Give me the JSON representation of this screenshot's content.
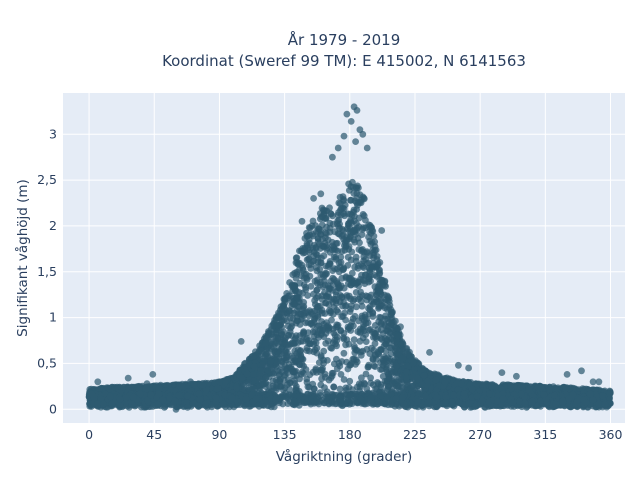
{
  "chart_data": {
    "type": "scatter",
    "title_line1": "År 1979 - 2019",
    "title_line2": "Koordinat (Sweref 99 TM): E 415002, N 6141563",
    "xlabel": "Vågriktning (grader)",
    "ylabel": "Signifikant våghöjd (m)",
    "xlim": [
      -18,
      370
    ],
    "ylim": [
      -0.15,
      3.45
    ],
    "x_ticks": [
      0,
      45,
      90,
      135,
      180,
      225,
      270,
      315,
      360
    ],
    "x_tick_labels": [
      "0",
      "45",
      "90",
      "135",
      "180",
      "225",
      "270",
      "315",
      "360"
    ],
    "y_ticks": [
      0,
      0.5,
      1,
      1.5,
      2,
      2.5,
      3
    ],
    "y_tick_labels": [
      "0",
      "0,5",
      "1",
      "1,5",
      "2",
      "2,5",
      "3"
    ],
    "grid": true,
    "marker_color": "#2e5a70",
    "marker_opacity": 0.72,
    "background_color": "#e5ecf6",
    "envelope": {
      "x": [
        0,
        15,
        30,
        45,
        60,
        75,
        90,
        100,
        105,
        110,
        115,
        120,
        125,
        130,
        135,
        140,
        145,
        150,
        155,
        160,
        165,
        170,
        175,
        180,
        185,
        190,
        195,
        200,
        205,
        210,
        215,
        220,
        225,
        230,
        240,
        250,
        260,
        270,
        285,
        300,
        315,
        330,
        345,
        360
      ],
      "y_max": [
        0.22,
        0.24,
        0.25,
        0.26,
        0.27,
        0.28,
        0.3,
        0.35,
        0.45,
        0.55,
        0.65,
        0.75,
        0.88,
        1.05,
        1.25,
        1.5,
        1.75,
        1.95,
        2.1,
        2.2,
        2.2,
        2.25,
        2.35,
        2.5,
        2.45,
        2.3,
        2.0,
        1.7,
        1.35,
        1.05,
        0.8,
        0.65,
        0.55,
        0.45,
        0.38,
        0.33,
        0.3,
        0.28,
        0.27,
        0.26,
        0.25,
        0.24,
        0.22,
        0.2
      ],
      "y_min": 0.0
    },
    "outliers": [
      {
        "x": 178,
        "y": 3.22
      },
      {
        "x": 181,
        "y": 3.14
      },
      {
        "x": 183,
        "y": 3.3
      },
      {
        "x": 185,
        "y": 3.26
      },
      {
        "x": 187,
        "y": 3.05
      },
      {
        "x": 189,
        "y": 3.0
      },
      {
        "x": 176,
        "y": 2.98
      },
      {
        "x": 172,
        "y": 2.85
      },
      {
        "x": 184,
        "y": 2.92
      },
      {
        "x": 168,
        "y": 2.75
      },
      {
        "x": 192,
        "y": 2.85
      },
      {
        "x": 160,
        "y": 2.35
      },
      {
        "x": 155,
        "y": 2.3
      },
      {
        "x": 147,
        "y": 2.05
      },
      {
        "x": 202,
        "y": 1.95
      },
      {
        "x": 215,
        "y": 0.9
      },
      {
        "x": 235,
        "y": 0.62
      },
      {
        "x": 255,
        "y": 0.48
      },
      {
        "x": 262,
        "y": 0.45
      },
      {
        "x": 105,
        "y": 0.74
      },
      {
        "x": 122,
        "y": 0.72
      },
      {
        "x": 6,
        "y": 0.3
      },
      {
        "x": 27,
        "y": 0.34
      },
      {
        "x": 40,
        "y": 0.28
      },
      {
        "x": 44,
        "y": 0.38
      },
      {
        "x": 70,
        "y": 0.3
      },
      {
        "x": 330,
        "y": 0.38
      },
      {
        "x": 348,
        "y": 0.3
      },
      {
        "x": 352,
        "y": 0.3
      },
      {
        "x": 285,
        "y": 0.4
      },
      {
        "x": 295,
        "y": 0.36
      },
      {
        "x": 340,
        "y": 0.42
      },
      {
        "x": 52,
        "y": 0.02
      },
      {
        "x": 60,
        "y": 0.0
      },
      {
        "x": 68,
        "y": 0.02
      },
      {
        "x": 75,
        "y": 0.04
      }
    ]
  }
}
